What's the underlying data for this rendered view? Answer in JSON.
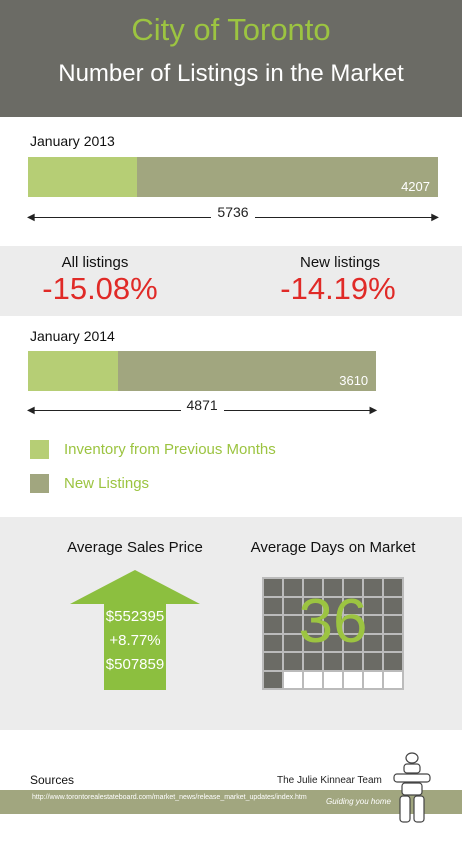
{
  "header": {
    "city": "City of Toronto",
    "subtitle": "Number of Listings in the Market"
  },
  "chart_data": [
    {
      "type": "bar",
      "orientation": "horizontal-stacked",
      "categories": [
        "January 2013",
        "January 2014"
      ],
      "series": [
        {
          "name": "Inventory from Previous Months",
          "values": [
            1529,
            1261
          ],
          "color": "#b6ce75"
        },
        {
          "name": "New Listings",
          "values": [
            4207,
            3610
          ],
          "color": "#a1a67f"
        }
      ],
      "totals": [
        5736,
        4871
      ],
      "new_labels": [
        "4207",
        "3610"
      ],
      "total_labels": [
        "5736",
        "4871"
      ],
      "xlim": [
        0,
        5736
      ],
      "legend": "bottom-left"
    }
  ],
  "changes": {
    "all_label": "All listings",
    "all_value": "-15.08%",
    "new_label": "New listings",
    "new_value": "-14.19%"
  },
  "legend": {
    "prev": "Inventory from Previous Months",
    "new": "New Listings"
  },
  "stats": {
    "price_title": "Average Sales Price",
    "price_current": "$552395",
    "price_change": "+8.77%",
    "price_previous": "$507859",
    "days_title": "Average Days on Market",
    "days_value": "36",
    "days_filled": 36,
    "days_grid_total": 42
  },
  "sources": {
    "label": "Sources",
    "url": "http://www.torontorealestateboard.com/market_news/release_market_updates/index.htm"
  },
  "branding": {
    "team": "The Julie Kinnear Team",
    "tagline": "Guiding you home"
  },
  "colors": {
    "header_bg": "#6b6b65",
    "accent_green": "#9cc441",
    "negative_red": "#e02a27",
    "bar_prev": "#b6ce75",
    "bar_new": "#a1a67f"
  }
}
